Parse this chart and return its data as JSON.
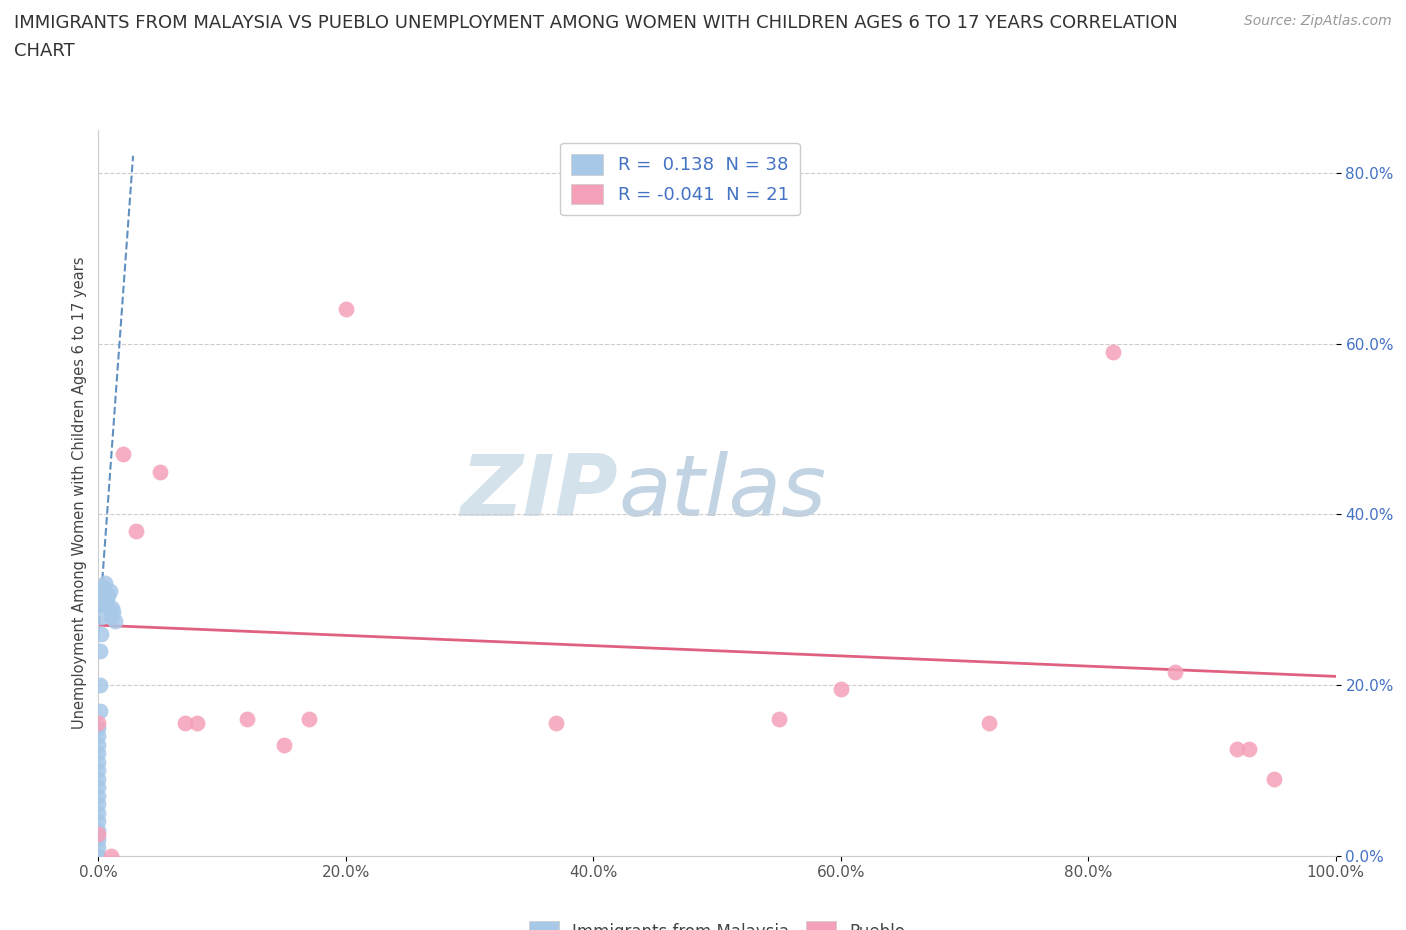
{
  "title_line1": "IMMIGRANTS FROM MALAYSIA VS PUEBLO UNEMPLOYMENT AMONG WOMEN WITH CHILDREN AGES 6 TO 17 YEARS CORRELATION",
  "title_line2": "CHART",
  "source_text": "Source: ZipAtlas.com",
  "ylabel": "Unemployment Among Women with Children Ages 6 to 17 years",
  "xlim": [
    0.0,
    1.0
  ],
  "ylim": [
    0.0,
    0.85
  ],
  "x_ticks": [
    0.0,
    0.2,
    0.4,
    0.6,
    0.8,
    1.0
  ],
  "x_tick_labels": [
    "0.0%",
    "20.0%",
    "40.0%",
    "60.0%",
    "80.0%",
    "100.0%"
  ],
  "y_ticks": [
    0.0,
    0.2,
    0.4,
    0.6,
    0.8
  ],
  "y_tick_labels": [
    "0.0%",
    "20.0%",
    "40.0%",
    "60.0%",
    "80.0%"
  ],
  "legend_r1": "R =  0.138",
  "legend_n1": "N = 38",
  "legend_r2": "R = -0.041",
  "legend_n2": "N = 21",
  "blue_color": "#a8c8e8",
  "pink_color": "#f4a0b8",
  "trend_blue_color": "#6090c0",
  "trend_pink_color": "#e06080",
  "watermark_zip_color": "#c0d0e0",
  "watermark_atlas_color": "#a0b8d0",
  "background_color": "#ffffff",
  "blue_scatter_x": [
    0.0,
    0.0,
    0.0,
    0.0,
    0.0,
    0.0,
    0.0,
    0.0,
    0.0,
    0.0,
    0.0,
    0.0,
    0.0,
    0.0,
    0.0,
    0.0,
    0.0,
    0.0,
    0.0,
    0.0,
    0.001,
    0.001,
    0.001,
    0.002,
    0.002,
    0.003,
    0.003,
    0.004,
    0.004,
    0.005,
    0.006,
    0.007,
    0.008,
    0.009,
    0.01,
    0.011,
    0.012,
    0.013
  ],
  "blue_scatter_y": [
    0.0,
    0.0,
    0.0,
    0.0,
    0.0,
    0.01,
    0.02,
    0.03,
    0.04,
    0.05,
    0.06,
    0.07,
    0.08,
    0.09,
    0.1,
    0.11,
    0.12,
    0.13,
    0.14,
    0.15,
    0.17,
    0.2,
    0.24,
    0.26,
    0.28,
    0.295,
    0.305,
    0.31,
    0.315,
    0.32,
    0.295,
    0.3,
    0.305,
    0.31,
    0.28,
    0.29,
    0.285,
    0.275
  ],
  "pink_scatter_x": [
    0.0,
    0.0,
    0.01,
    0.02,
    0.03,
    0.05,
    0.07,
    0.08,
    0.12,
    0.15,
    0.17,
    0.2,
    0.37,
    0.55,
    0.6,
    0.72,
    0.82,
    0.87,
    0.92,
    0.93,
    0.95
  ],
  "pink_scatter_y": [
    0.025,
    0.155,
    0.0,
    0.47,
    0.38,
    0.45,
    0.155,
    0.155,
    0.16,
    0.13,
    0.16,
    0.64,
    0.155,
    0.16,
    0.195,
    0.155,
    0.59,
    0.215,
    0.125,
    0.125,
    0.09
  ],
  "blue_trend_x": [
    -0.002,
    0.028
  ],
  "blue_trend_y": [
    0.22,
    0.82
  ],
  "pink_trend_x": [
    0.0,
    1.0
  ],
  "pink_trend_y": [
    0.27,
    0.21
  ]
}
